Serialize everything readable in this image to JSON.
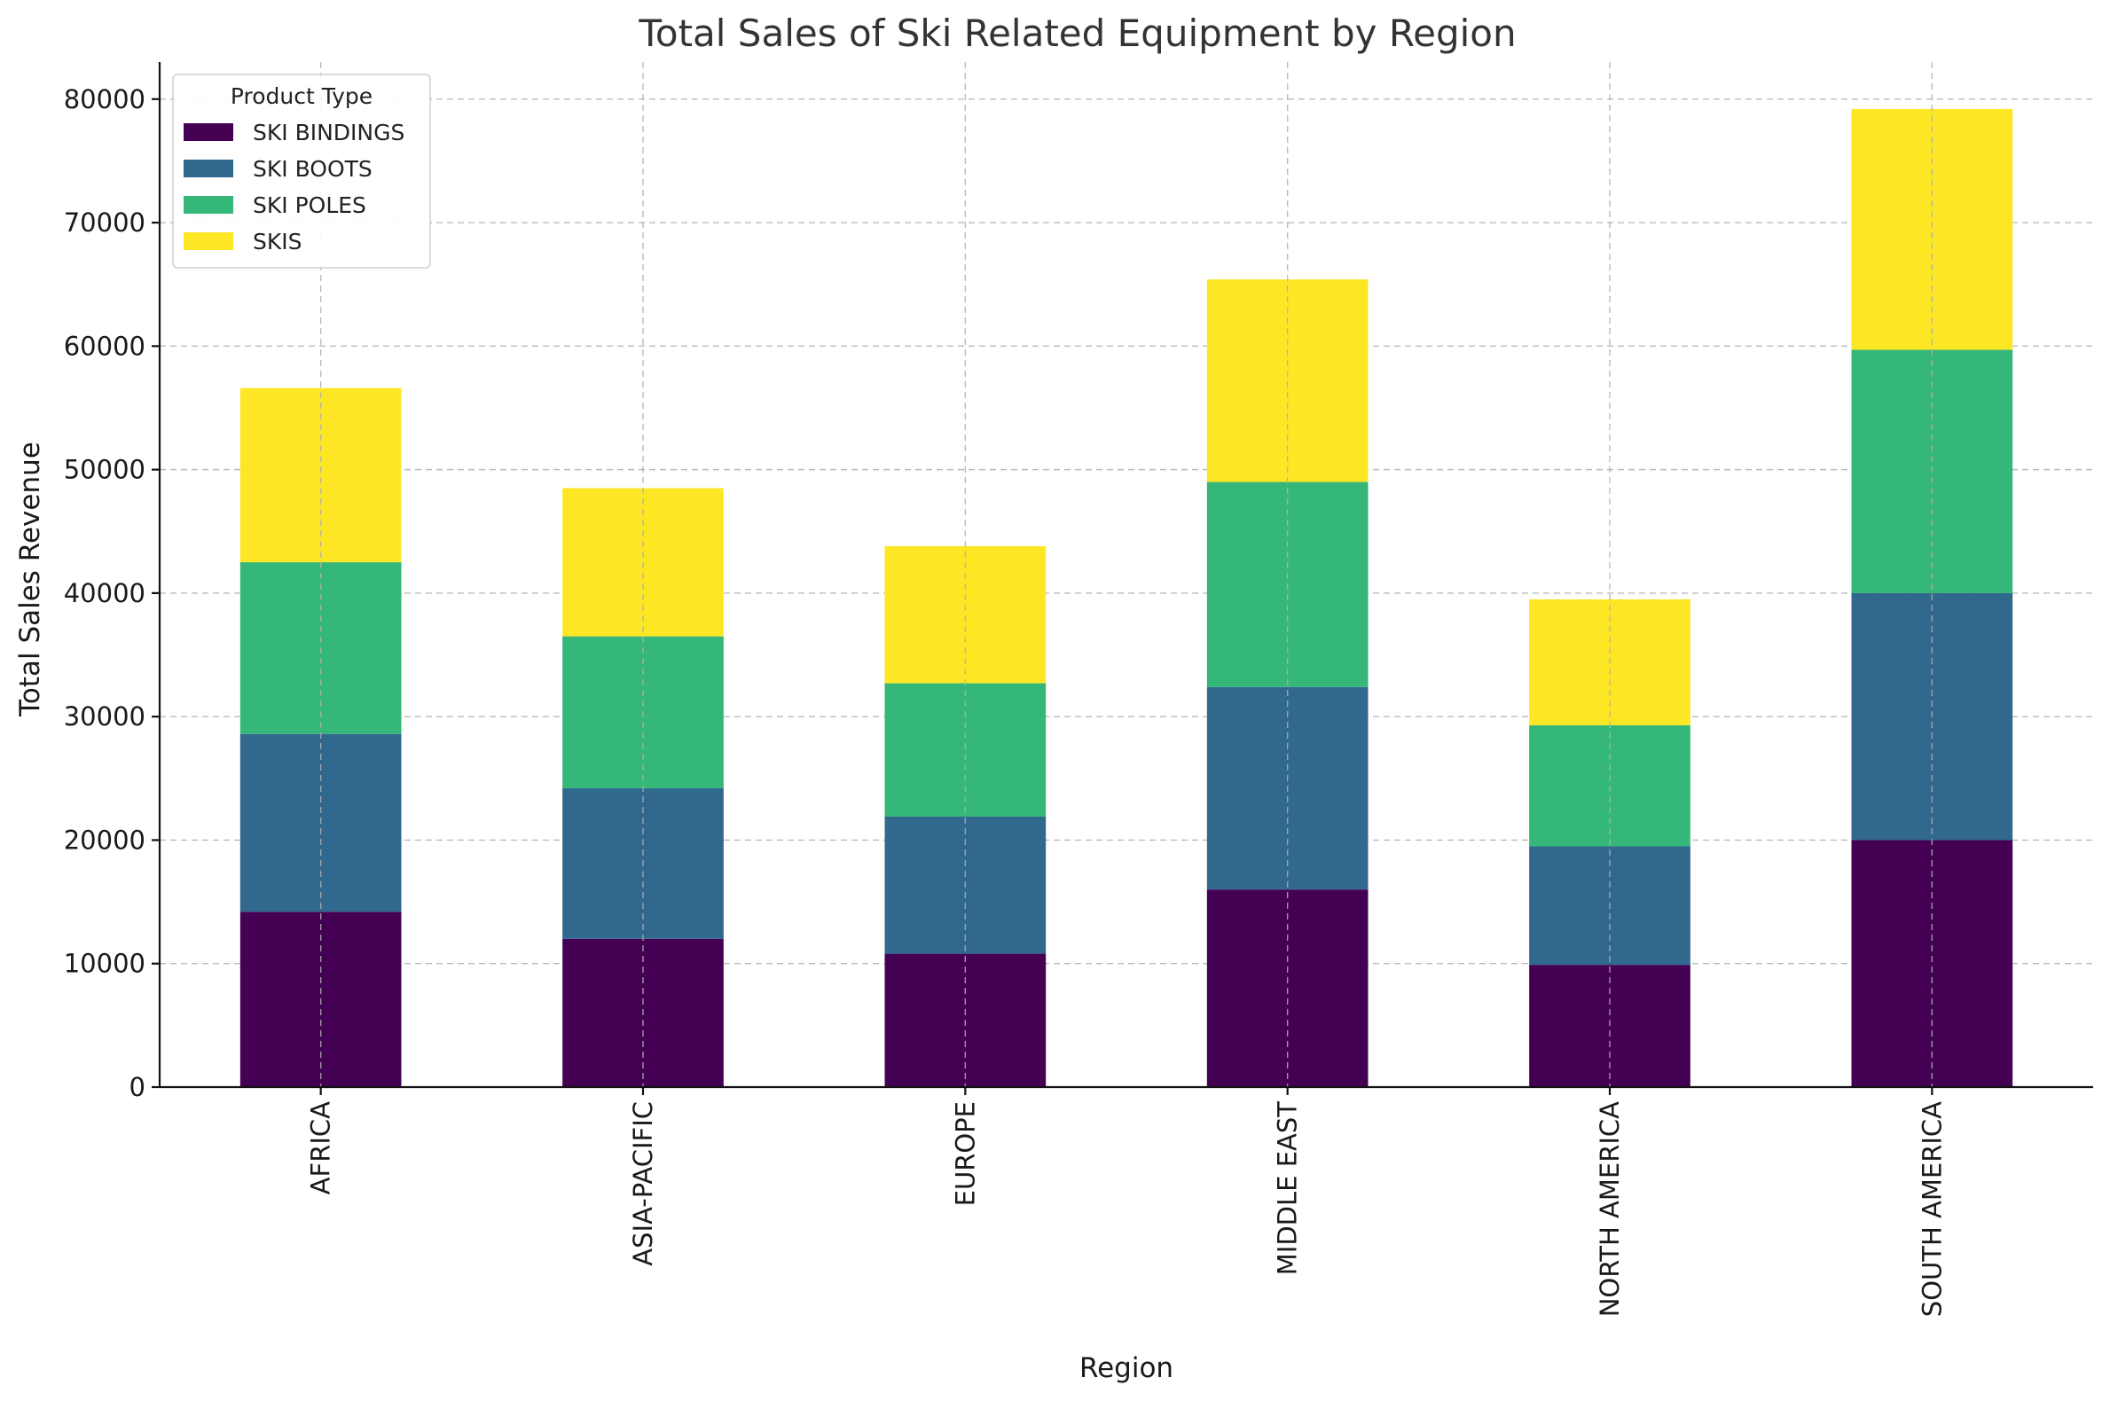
{
  "chart_data": {
    "type": "bar",
    "stacked": true,
    "title": "Total Sales of Ski Related Equipment by Region",
    "xlabel": "Region",
    "ylabel": "Total Sales Revenue",
    "categories": [
      "AFRICA",
      "ASIA-PACIFIC",
      "EUROPE",
      "MIDDLE EAST",
      "NORTH AMERICA",
      "SOUTH AMERICA"
    ],
    "ylim": [
      0,
      83000
    ],
    "yticks": [
      0,
      10000,
      20000,
      30000,
      40000,
      50000,
      60000,
      70000,
      80000
    ],
    "grid": true,
    "legend": {
      "title": "Product Type",
      "placement": "top-left"
    },
    "series": [
      {
        "name": "SKI BINDINGS",
        "color": "#440154",
        "values": [
          14200,
          12000,
          10800,
          16000,
          9900,
          20000
        ]
      },
      {
        "name": "SKI BOOTS",
        "color": "#31688e",
        "values": [
          14400,
          12200,
          11100,
          16400,
          9600,
          20000
        ]
      },
      {
        "name": "SKI POLES",
        "color": "#35b779",
        "values": [
          13900,
          12300,
          10800,
          16600,
          9800,
          19700
        ]
      },
      {
        "name": "SKIS",
        "color": "#fde725",
        "values": [
          14100,
          12000,
          11100,
          16400,
          10200,
          19500
        ]
      }
    ]
  }
}
